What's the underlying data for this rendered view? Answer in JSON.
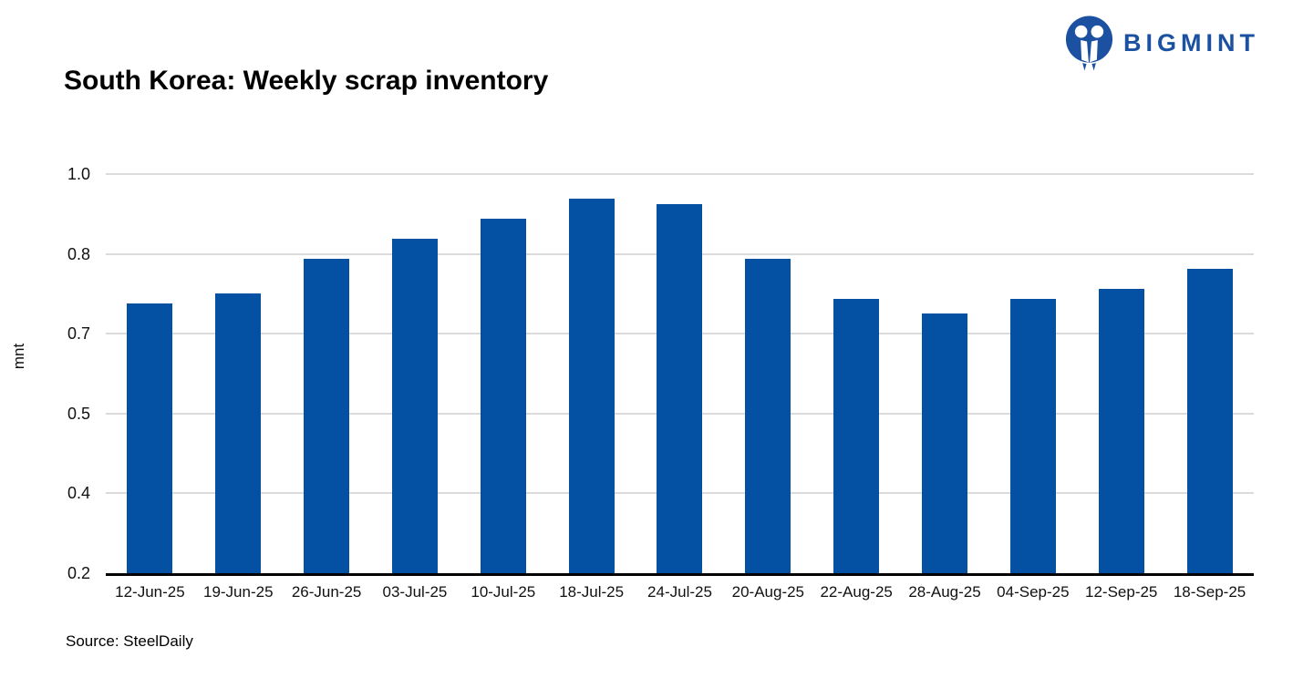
{
  "brand": {
    "name": "BIGMINT",
    "color": "#1B51A0",
    "icon": "bigmint-logo-icon"
  },
  "header": {
    "title": "South Korea: Weekly scrap inventory"
  },
  "chart_data": {
    "type": "bar",
    "title": "South Korea: Weekly scrap inventory",
    "xlabel": "",
    "ylabel": "mnt",
    "categories": [
      "12-Jun-25",
      "19-Jun-25",
      "26-Jun-25",
      "03-Jul-25",
      "10-Jul-25",
      "18-Jul-25",
      "24-Jul-25",
      "20-Aug-25",
      "22-Aug-25",
      "28-Aug-25",
      "04-Sep-25",
      "12-Sep-25",
      "18-Sep-25"
    ],
    "values": [
      0.74,
      0.76,
      0.83,
      0.87,
      0.91,
      0.95,
      0.94,
      0.83,
      0.75,
      0.72,
      0.75,
      0.77,
      0.81
    ],
    "ylim": [
      0.2,
      1.0
    ],
    "ytick_values": [
      0.2,
      0.36,
      0.52,
      0.68,
      0.84,
      1.0
    ],
    "ytick_labels": [
      "0.2",
      "0.4",
      "0.5",
      "0.7",
      "0.8",
      "1.0"
    ],
    "grid": true,
    "legend": false,
    "bar_color": "#0451A4",
    "gridline_color": "#DBDBDB",
    "axis_color": "#000000"
  },
  "footer": {
    "source": "Source: SteelDaily"
  }
}
